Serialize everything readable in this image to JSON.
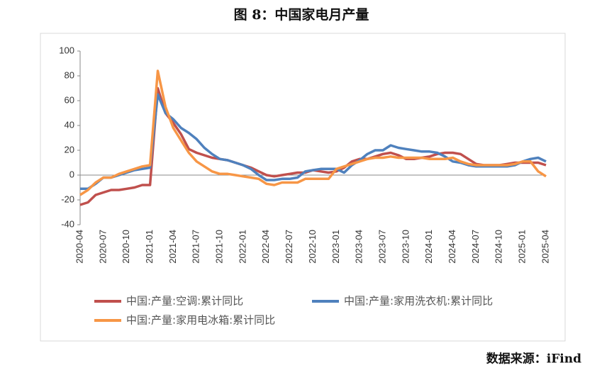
{
  "chart_data": {
    "type": "line",
    "title": "图 8：中国家电月产量",
    "source": "数据来源：iFind",
    "categories": [
      "2020-04",
      null,
      null,
      "2020-07",
      null,
      null,
      "2020-10",
      null,
      null,
      "2021-01",
      null,
      null,
      "2021-04",
      null,
      null,
      "2021-07",
      null,
      null,
      "2021-10",
      null,
      null,
      "2022-01",
      null,
      null,
      "2022-04",
      null,
      null,
      "2022-07",
      null,
      null,
      "2022-10",
      null,
      null,
      "2023-01",
      null,
      null,
      "2023-04",
      null,
      null,
      "2023-07",
      null,
      null,
      "2023-10",
      null,
      null,
      "2024-01",
      null,
      null,
      "2024-04",
      null,
      null,
      "2024-07",
      null,
      null,
      "2024-10",
      null,
      null,
      "2025-01",
      null,
      null,
      "2025-04"
    ],
    "series": [
      {
        "name": "中国:产量:空调:累计同比",
        "color": "#c0504d",
        "values": [
          -24,
          -22,
          -16,
          -14,
          -12,
          -12,
          -11,
          -10,
          -8,
          -8,
          70,
          50,
          42,
          33,
          21,
          18,
          16,
          14,
          13,
          12,
          10,
          8,
          6,
          3,
          0,
          -1,
          0,
          1,
          2,
          2,
          4,
          3,
          2,
          3,
          6,
          11,
          13,
          13,
          15,
          17,
          18,
          16,
          13,
          13,
          14,
          15,
          17,
          18,
          18,
          17,
          13,
          9,
          8,
          8,
          8,
          9,
          10,
          10,
          10,
          10,
          8
        ]
      },
      {
        "name": "中国:产量:家用洗衣机:累计同比",
        "color": "#4f81bd",
        "values": [
          -11,
          -11,
          -7,
          -2,
          -2,
          0,
          2,
          4,
          5,
          6,
          65,
          50,
          45,
          38,
          34,
          29,
          22,
          17,
          13,
          12,
          10,
          8,
          5,
          0,
          -4,
          -4,
          -3,
          -3,
          -2,
          3,
          4,
          5,
          5,
          5,
          2,
          8,
          12,
          17,
          20,
          20,
          24,
          22,
          21,
          20,
          19,
          19,
          18,
          15,
          11,
          10,
          8,
          7,
          7,
          7,
          7,
          7,
          8,
          11,
          13,
          14,
          11
        ]
      },
      {
        "name": "中国:产量:家用电冰箱:累计同比",
        "color": "#f79646",
        "values": [
          -16,
          -12,
          -6,
          -2,
          -2,
          1,
          3,
          5,
          7,
          8,
          84,
          55,
          38,
          28,
          18,
          11,
          7,
          3,
          1,
          1,
          0,
          -1,
          -2,
          -3,
          -7,
          -8,
          -6,
          -6,
          -6,
          -3,
          -3,
          -3,
          -3,
          5,
          7,
          9,
          11,
          13,
          14,
          14,
          15,
          14,
          14,
          14,
          14,
          13,
          13,
          13,
          14,
          11,
          9,
          8,
          8,
          8,
          8,
          8,
          9,
          11,
          11,
          3,
          -1
        ]
      }
    ],
    "ylim": [
      -40,
      100
    ],
    "yticks": [
      -40,
      -20,
      0,
      20,
      40,
      60,
      80,
      100
    ]
  }
}
